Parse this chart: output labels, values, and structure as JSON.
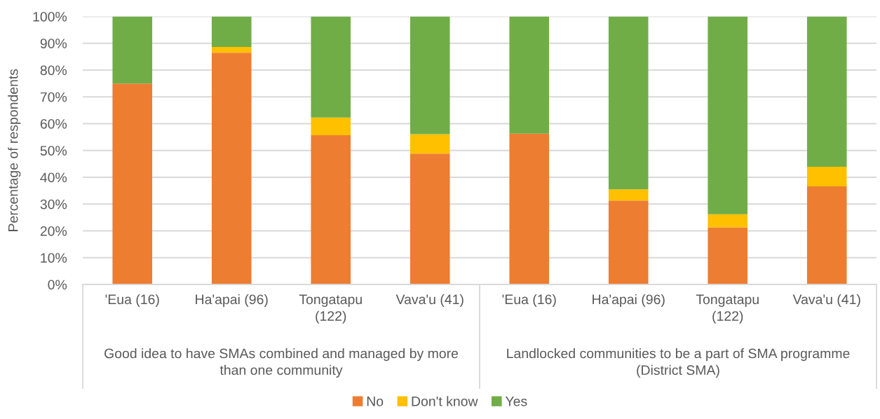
{
  "chart_data": {
    "type": "bar",
    "stacked": true,
    "ylabel": "Percentage of respondents",
    "categories": [
      "'Eua (16)",
      "Ha'apai (96)",
      "Tongatapu (122)",
      "Vava'u (41)",
      "'Eua (16)",
      "Ha'apai (96)",
      "Tongatapu (122)",
      "Vava'u (41)"
    ],
    "series": [
      {
        "name": "No",
        "color": "#ed7d31",
        "values": [
          75,
          86.5,
          55.7,
          48.8,
          56.3,
          31.3,
          21.3,
          36.6
        ]
      },
      {
        "name": "Don't know",
        "color": "#ffc000",
        "values": [
          0,
          2.1,
          6.6,
          7.3,
          0,
          4.2,
          4.9,
          7.3
        ]
      },
      {
        "name": "Yes",
        "color": "#70ad47",
        "values": [
          25,
          11.4,
          37.7,
          43.9,
          43.7,
          64.5,
          73.8,
          56.1
        ]
      }
    ],
    "ylim": [
      0,
      100
    ],
    "yticks": [
      {
        "value": 0,
        "label": "0%"
      },
      {
        "value": 10,
        "label": "10%"
      },
      {
        "value": 20,
        "label": "20%"
      },
      {
        "value": 30,
        "label": "30%"
      },
      {
        "value": 40,
        "label": "40%"
      },
      {
        "value": 50,
        "label": "50%"
      },
      {
        "value": 60,
        "label": "60%"
      },
      {
        "value": 70,
        "label": "70%"
      },
      {
        "value": 80,
        "label": "80%"
      },
      {
        "value": 90,
        "label": "90%"
      },
      {
        "value": 100,
        "label": "100%"
      }
    ],
    "grid": "y",
    "legend": "bottom",
    "annotations": [
      "Good idea to have SMAs combined and managed by more than one community",
      "Landlocked communities to be a part of SMA programme (District SMA)"
    ]
  }
}
